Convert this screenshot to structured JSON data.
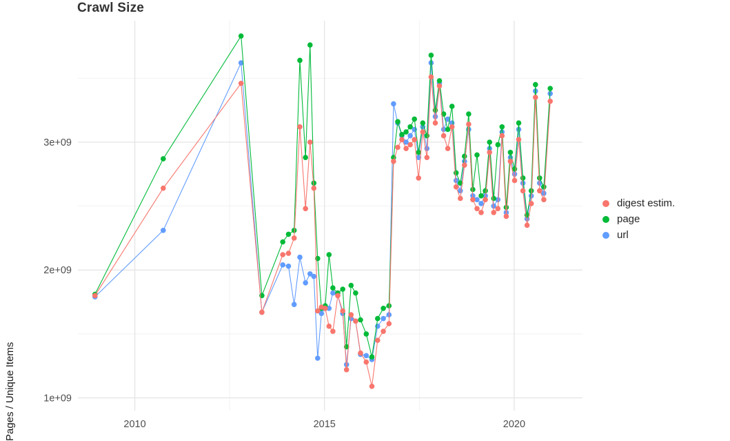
{
  "chart_data": {
    "type": "line",
    "title": "Crawl Size",
    "xlabel": "",
    "ylabel": "Pages / Unique Items",
    "xlim": [
      2008.5,
      2021.8
    ],
    "ylim": [
      900000000.0,
      3950000000.0
    ],
    "grid": {
      "major_color": "#e3e3e3",
      "minor_color": "#f0f0f0",
      "x_major": [
        2010,
        2015,
        2020
      ],
      "x_minor": [
        2012.5,
        2017.5
      ],
      "y_major": [
        1000000000.0,
        2000000000.0,
        3000000000.0
      ],
      "y_minor": [
        1500000000.0,
        2500000000.0,
        3500000000.0
      ]
    },
    "x_ticks": [
      {
        "value": 2010,
        "label": "2010"
      },
      {
        "value": 2015,
        "label": "2015"
      },
      {
        "value": 2020,
        "label": "2020"
      }
    ],
    "y_ticks": [
      {
        "value": 1000000000.0,
        "label": "1e+09"
      },
      {
        "value": 2000000000.0,
        "label": "2e+09"
      },
      {
        "value": 3000000000.0,
        "label": "3e+09"
      }
    ],
    "legend": {
      "position": "right",
      "items": [
        {
          "label": "digest estim.",
          "color": "#F8766D"
        },
        {
          "label": "page",
          "color": "#00BA38"
        },
        {
          "label": "url",
          "color": "#619CFF"
        }
      ]
    },
    "x": [
      2008.95,
      2010.75,
      2012.8,
      2013.35,
      2013.9,
      2014.05,
      2014.2,
      2014.35,
      2014.5,
      2014.62,
      2014.72,
      2014.82,
      2014.92,
      2015.02,
      2015.12,
      2015.22,
      2015.35,
      2015.48,
      2015.58,
      2015.7,
      2015.82,
      2015.95,
      2016.1,
      2016.25,
      2016.4,
      2016.55,
      2016.7,
      2016.82,
      2016.93,
      2017.04,
      2017.15,
      2017.26,
      2017.37,
      2017.48,
      2017.59,
      2017.7,
      2017.81,
      2017.92,
      2018.03,
      2018.14,
      2018.25,
      2018.36,
      2018.47,
      2018.58,
      2018.69,
      2018.8,
      2018.91,
      2019.02,
      2019.13,
      2019.24,
      2019.35,
      2019.46,
      2019.57,
      2019.68,
      2019.79,
      2019.9,
      2020.01,
      2020.12,
      2020.23,
      2020.34,
      2020.45,
      2020.56,
      2020.67,
      2020.78,
      2020.95
    ],
    "series": [
      {
        "name": "digest estim.",
        "color": "#F8766D",
        "values": [
          1800000000.0,
          2640000000.0,
          3460000000.0,
          1670000000.0,
          2120000000.0,
          2130000000.0,
          2250000000.0,
          3120000000.0,
          2480000000.0,
          3000000000.0,
          2640000000.0,
          1680000000.0,
          1710000000.0,
          1700000000.0,
          1560000000.0,
          1520000000.0,
          1800000000.0,
          1680000000.0,
          1220000000.0,
          1650000000.0,
          1600000000.0,
          1350000000.0,
          1280000000.0,
          1090000000.0,
          1450000000.0,
          1520000000.0,
          1580000000.0,
          2850000000.0,
          2960000000.0,
          3020000000.0,
          2950000000.0,
          2980000000.0,
          3020000000.0,
          2720000000.0,
          3080000000.0,
          2880000000.0,
          3510000000.0,
          3150000000.0,
          3440000000.0,
          3050000000.0,
          2950000000.0,
          3120000000.0,
          2650000000.0,
          2560000000.0,
          2820000000.0,
          3140000000.0,
          2550000000.0,
          2480000000.0,
          2450000000.0,
          2550000000.0,
          2920000000.0,
          2450000000.0,
          2480000000.0,
          3050000000.0,
          2420000000.0,
          2850000000.0,
          2700000000.0,
          3020000000.0,
          2620000000.0,
          2350000000.0,
          2520000000.0,
          3350000000.0,
          2620000000.0,
          2550000000.0,
          3320000000.0
        ]
      },
      {
        "name": "page",
        "color": "#00BA38",
        "values": [
          1810000000.0,
          2870000000.0,
          3830000000.0,
          1800000000.0,
          2220000000.0,
          2280000000.0,
          2310000000.0,
          3640000000.0,
          2880000000.0,
          3760000000.0,
          2680000000.0,
          2090000000.0,
          1700000000.0,
          1720000000.0,
          2120000000.0,
          1860000000.0,
          1820000000.0,
          1850000000.0,
          1400000000.0,
          1880000000.0,
          1820000000.0,
          1610000000.0,
          1500000000.0,
          1320000000.0,
          1620000000.0,
          1700000000.0,
          1720000000.0,
          2880000000.0,
          3160000000.0,
          3060000000.0,
          3080000000.0,
          3120000000.0,
          3180000000.0,
          2920000000.0,
          3150000000.0,
          3050000000.0,
          3680000000.0,
          3250000000.0,
          3480000000.0,
          3220000000.0,
          3100000000.0,
          3280000000.0,
          2760000000.0,
          2680000000.0,
          2890000000.0,
          3220000000.0,
          2630000000.0,
          2900000000.0,
          2580000000.0,
          2620000000.0,
          3000000000.0,
          2560000000.0,
          2980000000.0,
          3120000000.0,
          2490000000.0,
          2920000000.0,
          2790000000.0,
          3150000000.0,
          2720000000.0,
          2430000000.0,
          2620000000.0,
          3450000000.0,
          2720000000.0,
          2650000000.0,
          3420000000.0
        ]
      },
      {
        "name": "url",
        "color": "#619CFF",
        "values": [
          1790000000.0,
          2310000000.0,
          3620000000.0,
          1670000000.0,
          2040000000.0,
          2030000000.0,
          1730000000.0,
          2100000000.0,
          1900000000.0,
          1970000000.0,
          1950000000.0,
          1310000000.0,
          1660000000.0,
          1700000000.0,
          1700000000.0,
          1820000000.0,
          1800000000.0,
          1660000000.0,
          1260000000.0,
          1620000000.0,
          1600000000.0,
          1340000000.0,
          1330000000.0,
          1300000000.0,
          1560000000.0,
          1620000000.0,
          1650000000.0,
          3300000000.0,
          3150000000.0,
          3050000000.0,
          3000000000.0,
          3050000000.0,
          3100000000.0,
          2880000000.0,
          3120000000.0,
          2950000000.0,
          3620000000.0,
          3200000000.0,
          3460000000.0,
          3100000000.0,
          3180000000.0,
          3150000000.0,
          2700000000.0,
          2620000000.0,
          2850000000.0,
          3100000000.0,
          2580000000.0,
          2550000000.0,
          2520000000.0,
          2580000000.0,
          2950000000.0,
          2500000000.0,
          2550000000.0,
          3080000000.0,
          2450000000.0,
          2880000000.0,
          2750000000.0,
          3100000000.0,
          2680000000.0,
          2400000000.0,
          2580000000.0,
          3400000000.0,
          2680000000.0,
          2600000000.0,
          3380000000.0
        ]
      }
    ]
  }
}
